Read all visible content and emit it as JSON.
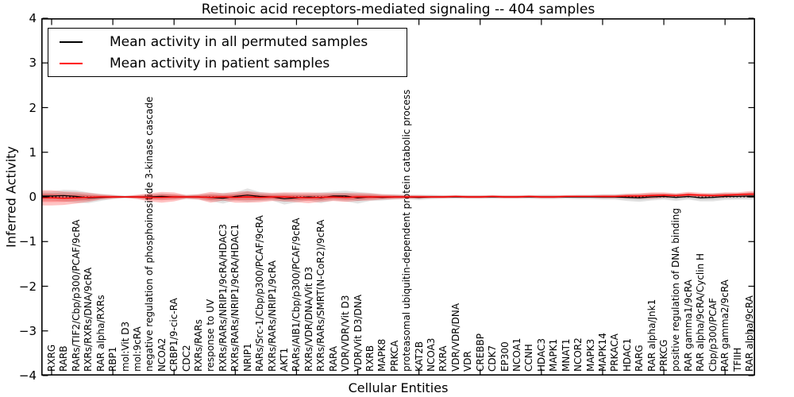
{
  "title": "Retinoic acid receptors-mediated signaling -- 404 samples",
  "legend": {
    "items": [
      {
        "label": "Mean activity in all permuted samples",
        "color": "#000000"
      },
      {
        "label": "Mean activity in patient samples",
        "color": "#ff0000"
      }
    ]
  },
  "chart_data": {
    "type": "line",
    "title": "Retinoic acid receptors-mediated signaling -- 404 samples",
    "xlabel": "Cellular Entities",
    "ylabel": "Inferred Activity",
    "ylim": [
      -4,
      4
    ],
    "ytick_values": [
      4,
      3,
      2,
      1,
      0,
      -1,
      -2,
      -3,
      -4
    ],
    "ytick_labels": [
      "4",
      "3",
      "2",
      "1",
      "0",
      "−1",
      "−2",
      "−3",
      "−4"
    ],
    "xtick_step": 5,
    "grid": false,
    "legend_position": "upper left",
    "zero_line": {
      "style": "dotted",
      "color": "#000000",
      "y": 0
    },
    "categories": [
      "RXRG",
      "RARB",
      "RARs/TIF2/Cbp/p300/PCAF/9cRA",
      "RXRs/RXRs/DNA/9cRA",
      "RAR alpha/RXRs",
      "RBP1",
      "mol:Vit D3",
      "mol:9cRA",
      "negative regulation of phosphoinositide 3-kinase cascade",
      "NCOA2",
      "CRBP1/9-cic-RA",
      "CDC2",
      "RXRs/RARs",
      "response to UV",
      "RXRs/RARs/NRIP1/9cRA/HDAC3",
      "RXRs/RARs/NRIP1/9cRA/HDAC1",
      "NRIP1",
      "RARs/Src-1/Cbp/p300/PCAF/9cRA",
      "RXRs/RARs/NRIP1/9cRA",
      "AKT1",
      "RARs/AIB1/Cbp/p300/PCAF/9cRA",
      "RXRs/VDR/DNA/Vit D3",
      "RXRs/RARs/SMRT(N-CoR2)/9cRA",
      "RARA",
      "VDR/VDR/Vit D3",
      "VDR/Vit D3/DNA",
      "RXRB",
      "MAPK8",
      "PRKCA",
      "proteasomal ubiquitin-dependent protein catabolic process",
      "KAT2B",
      "NCOA3",
      "RXRA",
      "VDR/VDR/DNA",
      "VDR",
      "CREBBP",
      "CDK7",
      "EP300",
      "NCOA1",
      "CCNH",
      "HDAC3",
      "MAPK1",
      "MNAT1",
      "NCOR2",
      "MAPK3",
      "MAPK14",
      "PRKACA",
      "HDAC1",
      "RARG",
      "RAR alpha/Jnk1",
      "PRKCG",
      "positive regulation of DNA binding",
      "RAR gamma1/9cRA",
      "RAR alpha/9cRA/Cyclin H",
      "Cbp/p300/PCAF",
      "RAR gamma2/9cRA",
      "TFIIH",
      "RAR alpha/9cRA"
    ],
    "series": [
      {
        "name": "Mean activity in all permuted samples",
        "color": "#000000",
        "values": [
          0.02,
          0.03,
          0.01,
          -0.02,
          -0.01,
          0,
          0,
          0,
          0,
          0.01,
          0,
          0,
          0,
          -0.01,
          -0.03,
          0.01,
          0.04,
          0.01,
          0,
          -0.04,
          -0.02,
          0,
          -0.02,
          0.02,
          0.02,
          -0.02,
          0,
          -0.01,
          0,
          0,
          -0.01,
          0,
          0,
          0,
          0,
          0,
          0,
          0,
          0,
          0,
          0,
          0,
          0,
          0,
          0,
          0,
          0,
          -0.01,
          -0.02,
          0,
          0.01,
          -0.01,
          0.01,
          -0.02,
          -0.01,
          0.01,
          0.01,
          0.02
        ]
      },
      {
        "name": "Mean activity in patient samples",
        "color": "#ff0000",
        "values": [
          -0.02,
          -0.03,
          -0.02,
          -0.01,
          0,
          0,
          0,
          0,
          -0.01,
          -0.01,
          0,
          0,
          0,
          -0.01,
          0,
          -0.01,
          0,
          -0.01,
          0,
          0,
          -0.01,
          -0.02,
          -0.01,
          0,
          -0.01,
          0,
          0,
          0,
          0,
          0,
          0,
          0,
          0,
          0.01,
          0,
          0,
          0.01,
          0,
          0,
          0.01,
          0,
          0,
          0.01,
          0.01,
          0.01,
          0.01,
          0.01,
          0.02,
          0.02,
          0.03,
          0.04,
          0.03,
          0.05,
          0.04,
          0.03,
          0.04,
          0.05,
          0.06
        ]
      }
    ],
    "bands": [
      {
        "name": "std permuted samples",
        "color": "#000000",
        "opacity": 0.11,
        "center_series": 0,
        "halfwidths": [
          0.1,
          0.13,
          0.14,
          0.12,
          0.08,
          0.05,
          0.03,
          0.04,
          0.06,
          0.07,
          0.06,
          0.05,
          0.06,
          0.09,
          0.12,
          0.09,
          0.15,
          0.1,
          0.08,
          0.13,
          0.1,
          0.08,
          0.12,
          0.1,
          0.12,
          0.13,
          0.09,
          0.07,
          0.06,
          0.05,
          0.06,
          0.05,
          0.04,
          0.04,
          0.04,
          0.04,
          0.04,
          0.04,
          0.04,
          0.04,
          0.05,
          0.05,
          0.04,
          0.05,
          0.05,
          0.06,
          0.06,
          0.08,
          0.09,
          0.08,
          0.07,
          0.08,
          0.07,
          0.08,
          0.09,
          0.08,
          0.07,
          0.08
        ]
      },
      {
        "name": "std patient samples",
        "color": "#ff0000",
        "opacity": 0.24,
        "center_series": 1,
        "halfwidths": [
          0.17,
          0.15,
          0.13,
          0.1,
          0.06,
          0.04,
          0.02,
          0.05,
          0.09,
          0.12,
          0.1,
          0.04,
          0.06,
          0.12,
          0.08,
          0.12,
          0.13,
          0.11,
          0.09,
          0.1,
          0.11,
          0.12,
          0.1,
          0.09,
          0.1,
          0.09,
          0.08,
          0.06,
          0.05,
          0.04,
          0.04,
          0.03,
          0.03,
          0.03,
          0.03,
          0.03,
          0.03,
          0.03,
          0.03,
          0.03,
          0.03,
          0.03,
          0.03,
          0.03,
          0.03,
          0.04,
          0.04,
          0.05,
          0.06,
          0.07,
          0.06,
          0.05,
          0.06,
          0.05,
          0.05,
          0.06,
          0.05,
          0.07
        ]
      }
    ]
  }
}
